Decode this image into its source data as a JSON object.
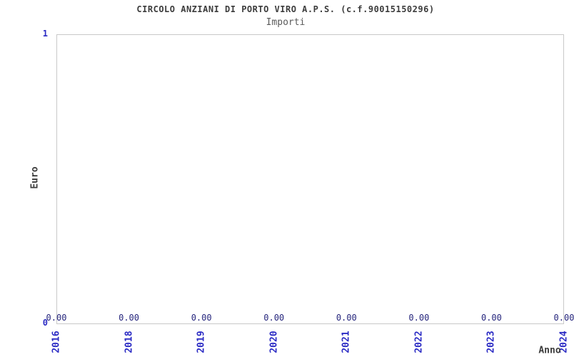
{
  "header": {
    "title": "CIRCOLO ANZIANI DI PORTO VIRO A.P.S. (c.f.90015150296)",
    "subtitle": "Importi"
  },
  "chart_data": {
    "type": "line",
    "title": "CIRCOLO ANZIANI DI PORTO VIRO A.P.S. (c.f.90015150296)",
    "subtitle": "Importi",
    "categories": [
      "2016",
      "2018",
      "2019",
      "2020",
      "2021",
      "2022",
      "2023",
      "2024"
    ],
    "values": [
      0,
      0,
      0,
      0,
      0,
      0,
      0,
      0
    ],
    "value_labels": [
      "0.00",
      "0.00",
      "0.00",
      "0.00",
      "0.00",
      "0.00",
      "0.00",
      "0.00"
    ],
    "xlabel": "Anno",
    "ylabel": "Euro",
    "ylim": [
      0,
      1
    ],
    "yticks": [
      "0",
      "1"
    ],
    "grid": false,
    "legend": null
  },
  "colors": {
    "title": "#3c3c3c",
    "subtitle": "#5a5a5a",
    "tick_label": "#2b2bc4",
    "value_label": "#26267d",
    "axis_border": "#c9c9c9"
  }
}
